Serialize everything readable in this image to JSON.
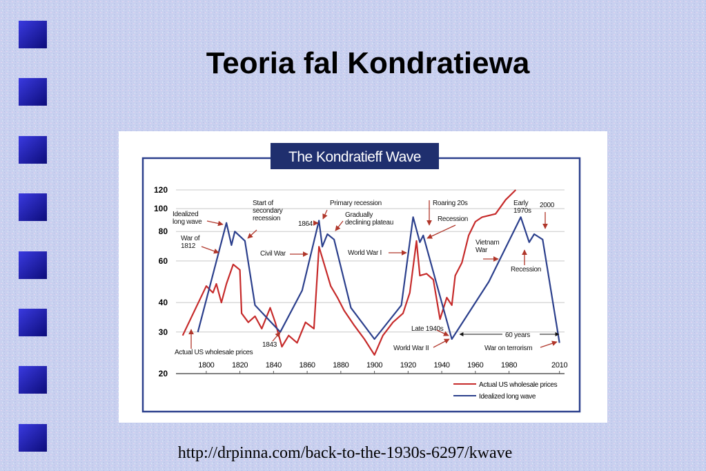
{
  "slide": {
    "title": "Teoria fal Kondratiewa",
    "source": "http://drpinna.com/back-to-the-1930s-6297/kwave"
  },
  "chart_data": {
    "type": "line",
    "title": "The Kondratieff Wave",
    "log_scale_y": true,
    "grid": true,
    "xlim": [
      1782,
      2013
    ],
    "ylim": [
      20,
      120
    ],
    "xticks": [
      1800,
      1820,
      1840,
      1860,
      1880,
      1900,
      1920,
      1940,
      1960,
      1980,
      2010
    ],
    "yticks": [
      20,
      30,
      40,
      60,
      80,
      100,
      120
    ],
    "series": [
      {
        "name": "Actual US wholesale prices",
        "color": "#c62a2a",
        "x": [
          1786,
          1800,
          1804,
          1806,
          1809,
          1812,
          1816,
          1820,
          1821,
          1825,
          1829,
          1833,
          1838,
          1841,
          1845,
          1849,
          1854,
          1859,
          1864,
          1867,
          1874,
          1878,
          1882,
          1888,
          1894,
          1900,
          1905,
          1911,
          1917,
          1921,
          1925,
          1927,
          1931,
          1935,
          1939,
          1943,
          1946,
          1948,
          1952,
          1956,
          1960,
          1964,
          1972,
          1978,
          1984
        ],
        "values": [
          29,
          47,
          44,
          48,
          40,
          48,
          58,
          55,
          36,
          33,
          35,
          31,
          38,
          33,
          26,
          29,
          27,
          33,
          31,
          69,
          47,
          42,
          37,
          32,
          28,
          24,
          29,
          33,
          36,
          44,
          73,
          52,
          53,
          50,
          34,
          42,
          39,
          52,
          59,
          77,
          88,
          92,
          95,
          109,
          120
        ]
      },
      {
        "name": "Idealized long wave",
        "color": "#2b3f8c",
        "x": [
          1795,
          1812,
          1815,
          1817,
          1823,
          1829,
          1844,
          1857,
          1867,
          1869,
          1872,
          1876,
          1886,
          1900,
          1916,
          1923,
          1927,
          1929,
          1946,
          1968,
          1987,
          1992,
          1995,
          2000,
          2010
        ],
        "values": [
          30,
          87,
          70,
          80,
          73,
          39,
          30,
          45,
          89,
          69,
          78,
          74,
          38,
          28,
          39,
          92,
          72,
          77,
          28,
          49,
          92,
          72,
          78,
          74,
          27
        ]
      }
    ],
    "annotations": [
      {
        "lines": [
          "Idealized",
          "long wave"
        ]
      },
      {
        "lines": [
          "War of",
          "1812"
        ]
      },
      {
        "lines": [
          "Start of",
          "secondary",
          "recession"
        ]
      },
      {
        "lines": [
          "1864"
        ]
      },
      {
        "lines": [
          "Primary recession"
        ]
      },
      {
        "lines": [
          "Gradually",
          "declining plateau"
        ]
      },
      {
        "lines": [
          "Civil War"
        ]
      },
      {
        "lines": [
          "World War I"
        ]
      },
      {
        "lines": [
          "Roaring 20s"
        ]
      },
      {
        "lines": [
          "Recession"
        ]
      },
      {
        "lines": [
          "Early",
          "1970s"
        ]
      },
      {
        "lines": [
          "2000"
        ]
      },
      {
        "lines": [
          "Vietnam",
          "War"
        ]
      },
      {
        "lines": [
          "Recession"
        ]
      },
      {
        "lines": [
          "Late 1940s"
        ]
      },
      {
        "lines": [
          "60 years"
        ]
      },
      {
        "lines": [
          "World War II"
        ]
      },
      {
        "lines": [
          "War on terrorism"
        ]
      },
      {
        "lines": [
          "1843"
        ]
      },
      {
        "lines": [
          "Actual US wholesale prices"
        ]
      }
    ]
  }
}
